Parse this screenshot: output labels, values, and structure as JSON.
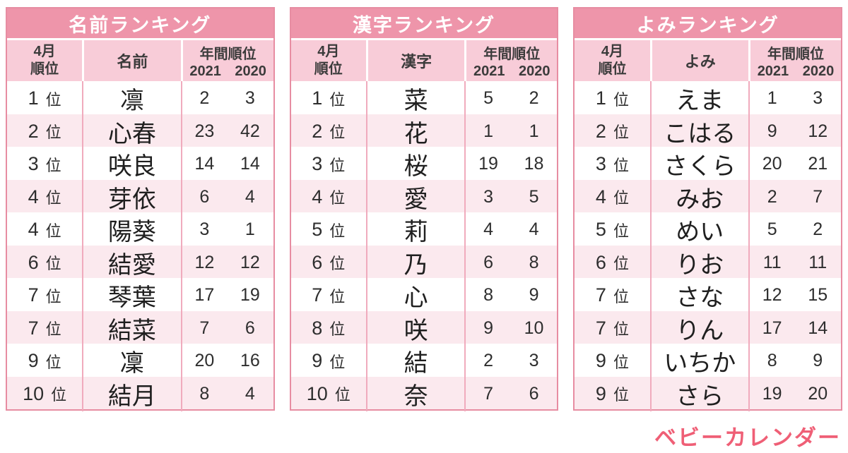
{
  "shared_columns": {
    "april_rank_line1": "4月",
    "april_rank_line2": "順位",
    "annual_rank": "年間順位",
    "year_2021": "2021",
    "year_2020": "2020",
    "rank_unit": "位"
  },
  "chart_data": [
    {
      "type": "table",
      "title": "名前ランキング",
      "value_column": "名前",
      "columns": [
        "4月順位",
        "名前",
        "年間順位 2021",
        "年間順位 2020"
      ],
      "rows": [
        {
          "rank": "1",
          "value": "凛",
          "y2021": "2",
          "y2020": "3"
        },
        {
          "rank": "2",
          "value": "心春",
          "y2021": "23",
          "y2020": "42"
        },
        {
          "rank": "3",
          "value": "咲良",
          "y2021": "14",
          "y2020": "14"
        },
        {
          "rank": "4",
          "value": "芽依",
          "y2021": "6",
          "y2020": "4"
        },
        {
          "rank": "4",
          "value": "陽葵",
          "y2021": "3",
          "y2020": "1"
        },
        {
          "rank": "6",
          "value": "結愛",
          "y2021": "12",
          "y2020": "12"
        },
        {
          "rank": "7",
          "value": "琴葉",
          "y2021": "17",
          "y2020": "19"
        },
        {
          "rank": "7",
          "value": "結菜",
          "y2021": "7",
          "y2020": "6"
        },
        {
          "rank": "9",
          "value": "凜",
          "y2021": "20",
          "y2020": "16"
        },
        {
          "rank": "10",
          "value": "結月",
          "y2021": "8",
          "y2020": "4"
        }
      ]
    },
    {
      "type": "table",
      "title": "漢字ランキング",
      "value_column": "漢字",
      "columns": [
        "4月順位",
        "漢字",
        "年間順位 2021",
        "年間順位 2020"
      ],
      "rows": [
        {
          "rank": "1",
          "value": "菜",
          "y2021": "5",
          "y2020": "2"
        },
        {
          "rank": "2",
          "value": "花",
          "y2021": "1",
          "y2020": "1"
        },
        {
          "rank": "3",
          "value": "桜",
          "y2021": "19",
          "y2020": "18"
        },
        {
          "rank": "4",
          "value": "愛",
          "y2021": "3",
          "y2020": "5"
        },
        {
          "rank": "5",
          "value": "莉",
          "y2021": "4",
          "y2020": "4"
        },
        {
          "rank": "6",
          "value": "乃",
          "y2021": "6",
          "y2020": "8"
        },
        {
          "rank": "7",
          "value": "心",
          "y2021": "8",
          "y2020": "9"
        },
        {
          "rank": "8",
          "value": "咲",
          "y2021": "9",
          "y2020": "10"
        },
        {
          "rank": "9",
          "value": "結",
          "y2021": "2",
          "y2020": "3"
        },
        {
          "rank": "10",
          "value": "奈",
          "y2021": "7",
          "y2020": "6"
        }
      ]
    },
    {
      "type": "table",
      "title": "よみランキング",
      "value_column": "よみ",
      "columns": [
        "4月順位",
        "よみ",
        "年間順位 2021",
        "年間順位 2020"
      ],
      "rows": [
        {
          "rank": "1",
          "value": "えま",
          "y2021": "1",
          "y2020": "3"
        },
        {
          "rank": "2",
          "value": "こはる",
          "y2021": "9",
          "y2020": "12"
        },
        {
          "rank": "3",
          "value": "さくら",
          "y2021": "20",
          "y2020": "21"
        },
        {
          "rank": "4",
          "value": "みお",
          "y2021": "2",
          "y2020": "7"
        },
        {
          "rank": "5",
          "value": "めい",
          "y2021": "5",
          "y2020": "2"
        },
        {
          "rank": "6",
          "value": "りお",
          "y2021": "11",
          "y2020": "11"
        },
        {
          "rank": "7",
          "value": "さな",
          "y2021": "12",
          "y2020": "15"
        },
        {
          "rank": "7",
          "value": "りん",
          "y2021": "17",
          "y2020": "14"
        },
        {
          "rank": "9",
          "value": "いちか",
          "y2021": "8",
          "y2020": "9"
        },
        {
          "rank": "9",
          "value": "さら",
          "y2021": "19",
          "y2020": "20"
        }
      ]
    }
  ],
  "logo": "ベビーカレンダー",
  "colors": {
    "title_bar": "#EE95AA",
    "header_bg": "#F8CCD8",
    "row_bg": "#FFFFFF",
    "row_alt_bg": "#FBE9EE",
    "outer_border": "#E78DA2",
    "column_divider": "#F0ABBD",
    "title_text": "#FFFFFF",
    "body_text": "#2E2E2E",
    "logo_text": "#EF5F76"
  }
}
